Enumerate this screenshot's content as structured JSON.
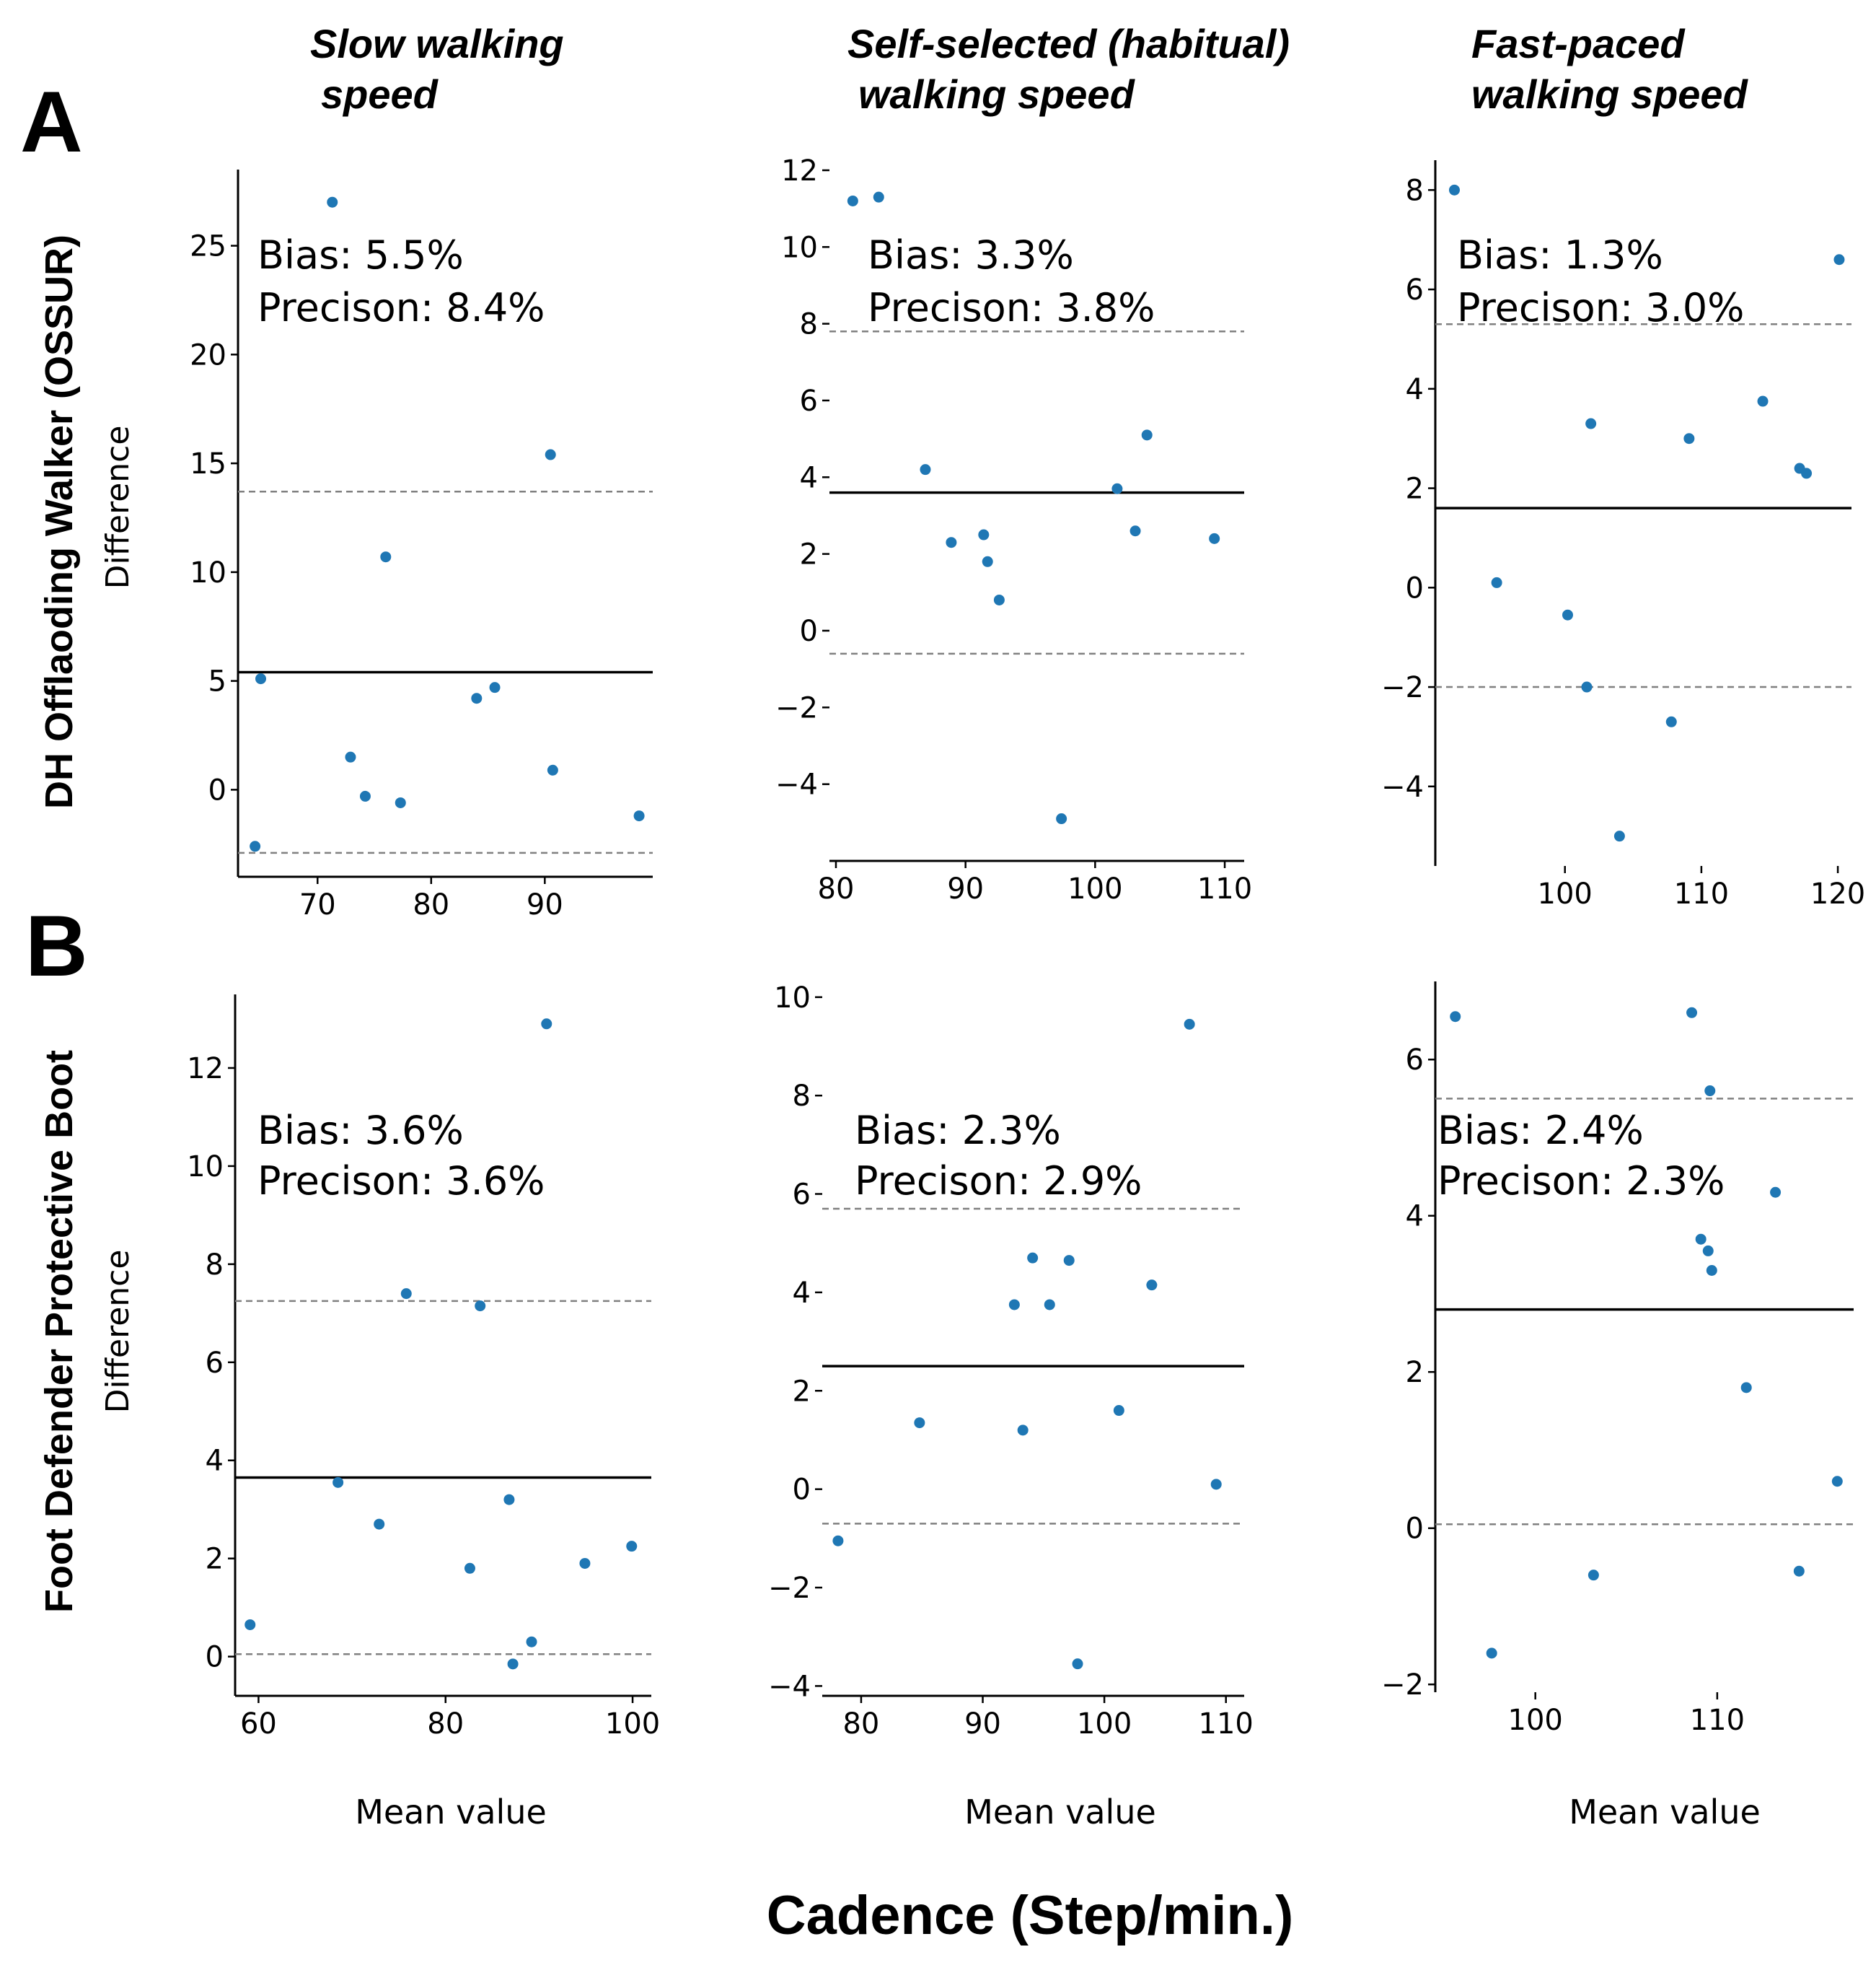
{
  "figure": {
    "column_titles": [
      [
        "Slow walking",
        "speed"
      ],
      [
        "Self-selected (habitual)",
        "walking speed"
      ],
      [
        "Fast-paced",
        "walking speed"
      ]
    ],
    "panel_letters": [
      "A",
      "B"
    ],
    "row_labels": [
      "DH Offlaoding Walker (OSSUR)",
      "Foot Defender Protective Boot"
    ],
    "y_label": "Difference",
    "x_label": "Mean value",
    "overall_x_label": "Cadence (Step/min.)"
  },
  "colors": {
    "points": "#1f77b4",
    "mean_line": "#000000",
    "loa_line": "#808080"
  },
  "chart_data": [
    {
      "id": "A1",
      "type": "scatter",
      "row": "DH Offlaoding Walker (OSSUR)",
      "column": "Slow walking speed",
      "xlabel": "",
      "ylabel": "Difference",
      "xlim": [
        63,
        99.5
      ],
      "ylim": [
        -4,
        28.5
      ],
      "xticks": [
        70,
        80,
        90
      ],
      "yticks": [
        0,
        5,
        10,
        15,
        20,
        25
      ],
      "bias_text": "Bias: 5.5%",
      "precision_text": "Precison: 8.4%",
      "mean": 5.4,
      "loa_upper": 13.7,
      "loa_lower": -2.9,
      "points": [
        [
          64.5,
          -2.6
        ],
        [
          65.0,
          5.1
        ],
        [
          71.3,
          27.0
        ],
        [
          72.9,
          1.5
        ],
        [
          74.2,
          -0.3
        ],
        [
          76.0,
          10.7
        ],
        [
          77.3,
          -0.6
        ],
        [
          84.0,
          4.2
        ],
        [
          85.6,
          4.7
        ],
        [
          90.5,
          15.4
        ],
        [
          90.7,
          0.9
        ],
        [
          98.3,
          -1.2
        ]
      ]
    },
    {
      "id": "A2",
      "type": "scatter",
      "row": "DH Offlaoding Walker (OSSUR)",
      "column": "Self-selected (habitual) walking speed",
      "xlabel": "",
      "ylabel": "",
      "xlim": [
        79.5,
        111.5
      ],
      "ylim": [
        -6,
        12.3
      ],
      "xticks": [
        80,
        90,
        100,
        110
      ],
      "yticks": [
        -4,
        -2,
        0,
        2,
        4,
        6,
        8,
        10,
        12
      ],
      "bias_text": "Bias: 3.3%",
      "precision_text": "Precison: 3.8%",
      "mean": 3.6,
      "loa_upper": 7.8,
      "loa_lower": -0.6,
      "points": [
        [
          81.3,
          11.2
        ],
        [
          83.3,
          11.3
        ],
        [
          86.9,
          4.2
        ],
        [
          88.9,
          2.3
        ],
        [
          91.4,
          2.5
        ],
        [
          91.7,
          1.8
        ],
        [
          92.6,
          0.8
        ],
        [
          97.4,
          -4.9
        ],
        [
          101.7,
          3.7
        ],
        [
          103.1,
          2.6
        ],
        [
          104.0,
          5.1
        ],
        [
          109.2,
          2.4
        ]
      ]
    },
    {
      "id": "A3",
      "type": "scatter",
      "row": "DH Offlaoding Walker (OSSUR)",
      "column": "Fast-paced walking speed",
      "xlabel": "",
      "ylabel": "",
      "xlim": [
        90.5,
        121
      ],
      "ylim": [
        -5.6,
        8.6
      ],
      "xticks": [
        100,
        110,
        120
      ],
      "yticks": [
        -4,
        -2,
        0,
        2,
        4,
        6,
        8
      ],
      "bias_text": "Bias: 1.3%",
      "precision_text": "Precison: 3.0%",
      "mean": 1.6,
      "loa_upper": 5.3,
      "loa_lower": -2.0,
      "points": [
        [
          91.9,
          8.0
        ],
        [
          95.0,
          0.1
        ],
        [
          100.2,
          -0.55
        ],
        [
          101.6,
          -2.0
        ],
        [
          101.9,
          3.3
        ],
        [
          104.0,
          -5.0
        ],
        [
          107.8,
          -2.7
        ],
        [
          109.1,
          3.0
        ],
        [
          114.5,
          3.75
        ],
        [
          117.2,
          2.4
        ],
        [
          117.7,
          2.3
        ],
        [
          120.1,
          6.6
        ]
      ]
    },
    {
      "id": "B1",
      "type": "scatter",
      "row": "Foot Defender Protective Boot",
      "column": "Slow walking speed",
      "xlabel": "Mean value",
      "ylabel": "Difference",
      "xlim": [
        57.5,
        102
      ],
      "ylim": [
        -0.8,
        13.5
      ],
      "xticks": [
        60,
        80,
        100
      ],
      "yticks": [
        0,
        2,
        4,
        6,
        8,
        10,
        12
      ],
      "bias_text": "Bias: 3.6%",
      "precision_text": "Precison: 3.6%",
      "mean": 3.65,
      "loa_upper": 7.25,
      "loa_lower": 0.05,
      "points": [
        [
          59.1,
          0.65
        ],
        [
          68.5,
          3.55
        ],
        [
          72.9,
          2.7
        ],
        [
          75.8,
          7.4
        ],
        [
          82.6,
          1.8
        ],
        [
          83.7,
          7.15
        ],
        [
          86.8,
          3.2
        ],
        [
          87.2,
          -0.15
        ],
        [
          89.2,
          0.3
        ],
        [
          90.8,
          12.9
        ],
        [
          94.9,
          1.9
        ],
        [
          99.9,
          2.25
        ]
      ]
    },
    {
      "id": "B2",
      "type": "scatter",
      "row": "Foot Defender Protective Boot",
      "column": "Self-selected (habitual) walking speed",
      "xlabel": "Mean value",
      "ylabel": "",
      "xlim": [
        76.8,
        111.5
      ],
      "ylim": [
        -4.2,
        10.1
      ],
      "xticks": [
        80,
        90,
        100,
        110
      ],
      "yticks": [
        -4,
        -2,
        0,
        2,
        4,
        6,
        8,
        10
      ],
      "bias_text": "Bias: 2.3%",
      "precision_text": "Precison: 2.9%",
      "mean": 2.5,
      "loa_upper": 5.7,
      "loa_lower": -0.7,
      "points": [
        [
          78.1,
          -1.05
        ],
        [
          84.8,
          1.35
        ],
        [
          92.6,
          3.75
        ],
        [
          93.3,
          1.2
        ],
        [
          94.1,
          4.7
        ],
        [
          95.5,
          3.75
        ],
        [
          97.1,
          4.65
        ],
        [
          97.8,
          -3.55
        ],
        [
          101.2,
          1.6
        ],
        [
          103.9,
          4.15
        ],
        [
          107.0,
          9.45
        ],
        [
          109.2,
          0.1
        ]
      ]
    },
    {
      "id": "B3",
      "type": "scatter",
      "row": "Foot Defender Protective Boot",
      "column": "Fast-paced walking speed",
      "xlabel": "Mean value",
      "ylabel": "",
      "xlim": [
        94.5,
        117.5
      ],
      "ylim": [
        -2.1,
        7.0
      ],
      "xticks": [
        100,
        110
      ],
      "yticks": [
        -2,
        0,
        2,
        4,
        6
      ],
      "bias_text": "Bias: 2.4%",
      "precision_text": "Precison: 2.3%",
      "mean": 2.8,
      "loa_upper": 5.5,
      "loa_lower": 0.05,
      "points": [
        [
          95.6,
          6.55
        ],
        [
          97.6,
          -1.6
        ],
        [
          103.2,
          -0.6
        ],
        [
          108.6,
          6.6
        ],
        [
          109.1,
          3.7
        ],
        [
          109.5,
          3.55
        ],
        [
          109.6,
          5.6
        ],
        [
          109.7,
          3.3
        ],
        [
          111.6,
          1.8
        ],
        [
          113.2,
          4.3
        ],
        [
          114.5,
          -0.55
        ],
        [
          116.6,
          0.6
        ]
      ]
    }
  ]
}
